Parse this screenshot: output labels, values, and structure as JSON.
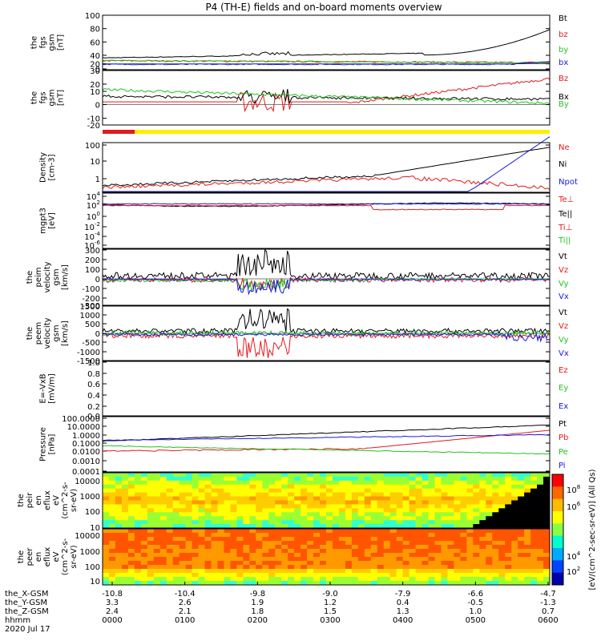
{
  "title": "P4 (TH-E) fields and on-board moments overview",
  "colors": {
    "black": "#000000",
    "red": "#e41a1c",
    "green": "#22c422",
    "blue": "#1a1ae0",
    "yellow": "#ffee00"
  },
  "panels": [
    {
      "ylabel": [
        "the",
        "fgs",
        "gsm",
        "[nT]"
      ],
      "ticks": [
        "100",
        "80",
        "60",
        "40",
        "20",
        "0"
      ],
      "legend": [
        {
          "text": "Bt",
          "color": "black"
        },
        {
          "text": "bz",
          "color": "red"
        },
        {
          "text": "by",
          "color": "green"
        },
        {
          "text": "bx",
          "color": "blue"
        }
      ]
    },
    {
      "ylabel": [
        "the",
        "fgs",
        "gsm",
        "[nT]"
      ],
      "ticks": [
        "30",
        "20",
        "10",
        "0",
        "-10",
        "-20"
      ],
      "legend": [
        {
          "text": "Bz",
          "color": "red"
        },
        {
          "text": "Bx",
          "color": "black"
        },
        {
          "text": "By",
          "color": "green"
        }
      ]
    },
    {
      "ylabel": [
        "Density",
        "[cm-3]"
      ],
      "ticks": [
        "100",
        "10",
        "1"
      ],
      "legend": [
        {
          "text": "Ne",
          "color": "red"
        },
        {
          "text": "Ni",
          "color": "black"
        },
        {
          "text": "Npot",
          "color": "blue"
        }
      ]
    },
    {
      "ylabel": [
        "mgpt3",
        "[eV]"
      ],
      "ticks": [
        "10",
        "10",
        "10",
        "10",
        "10",
        "10"
      ],
      "legend": [
        {
          "text": "Te⊥",
          "color": "red"
        },
        {
          "text": "Te||",
          "color": "black"
        },
        {
          "text": "Ti⊥",
          "color": "red"
        },
        {
          "text": "Ti||",
          "color": "green"
        }
      ]
    },
    {
      "ylabel": [
        "the",
        "peim",
        "velocity",
        "gsm",
        "[km/s]"
      ],
      "ticks": [
        "300",
        "200",
        "100",
        "0",
        "-100",
        "-200",
        "-300"
      ],
      "legend": [
        {
          "text": "Vt",
          "color": "black"
        },
        {
          "text": "Vz",
          "color": "red"
        },
        {
          "text": "Vy",
          "color": "green"
        },
        {
          "text": "Vx",
          "color": "blue"
        }
      ]
    },
    {
      "ylabel": [
        "the",
        "peem",
        "velocity",
        "gsm",
        "[km/s]"
      ],
      "ticks": [
        "1500",
        "1000",
        "500",
        "0",
        "-500",
        "-1000",
        "-1500"
      ],
      "legend": [
        {
          "text": "Vt",
          "color": "black"
        },
        {
          "text": "Vz",
          "color": "red"
        },
        {
          "text": "Vy",
          "color": "green"
        },
        {
          "text": "Vx",
          "color": "blue"
        }
      ]
    },
    {
      "ylabel": [
        "E=-VxB",
        "[mV/m]"
      ],
      "ticks": [
        "1.0",
        "0.8",
        "0.6",
        "0.4",
        "0.2",
        "0.0"
      ],
      "legend": [
        {
          "text": "Ez",
          "color": "red"
        },
        {
          "text": "Ey",
          "color": "green"
        },
        {
          "text": "Ex",
          "color": "blue"
        }
      ]
    },
    {
      "ylabel": [
        "Pressure",
        "[nPa]"
      ],
      "ticks": [
        "100.0000",
        "10.0000",
        "1.0000",
        "0.1000",
        "0.0100",
        "0.0010",
        "0.0001"
      ],
      "legend": [
        {
          "text": "Pt",
          "color": "black"
        },
        {
          "text": "Pb",
          "color": "red"
        },
        {
          "text": "Pe",
          "color": "green"
        },
        {
          "text": "Pi",
          "color": "blue"
        }
      ]
    },
    {
      "ylabel": [
        "the",
        "peir",
        "en",
        "eflux",
        "eV",
        "(cm^2-s-",
        "sr-eV)"
      ],
      "ticks": [
        "10000",
        "1000",
        "100",
        "10"
      ],
      "legend": []
    },
    {
      "ylabel": [
        "the",
        "peer",
        "en",
        "eflux",
        "eV",
        "(cm^2-s-",
        "sr-eV)"
      ],
      "ticks": [
        "10000",
        "1000",
        "100",
        "10"
      ],
      "legend": []
    }
  ],
  "temp_tick_exponents": [
    "4",
    "2",
    "0",
    "-2",
    "-4",
    "-6"
  ],
  "colorbar": {
    "label": "[eV/(cm^2-sec-sr-eV)] (All Qs)",
    "ticks": [
      "10",
      "10",
      "10",
      "10"
    ],
    "exponents": [
      "8",
      "6",
      "4",
      "2"
    ]
  },
  "x_axis": {
    "rows": [
      {
        "label": "the_X-GSM",
        "values": [
          "-10.8",
          "-10.4",
          "-9.8",
          "-9.0",
          "-7.9",
          "-6.6",
          "-4.7"
        ]
      },
      {
        "label": "the_Y-GSM",
        "values": [
          "3.3",
          "2.6",
          "1.9",
          "1.2",
          "0.4",
          "-0.5",
          "-1.3"
        ]
      },
      {
        "label": "the_Z-GSM",
        "values": [
          "2.4",
          "2.1",
          "1.8",
          "1.5",
          "1.3",
          "1.0",
          "0.7"
        ]
      },
      {
        "label": "hhmm",
        "values": [
          "0000",
          "0100",
          "0200",
          "0300",
          "0400",
          "0500",
          "0600"
        ]
      }
    ],
    "date": "2020 Jul 17"
  }
}
